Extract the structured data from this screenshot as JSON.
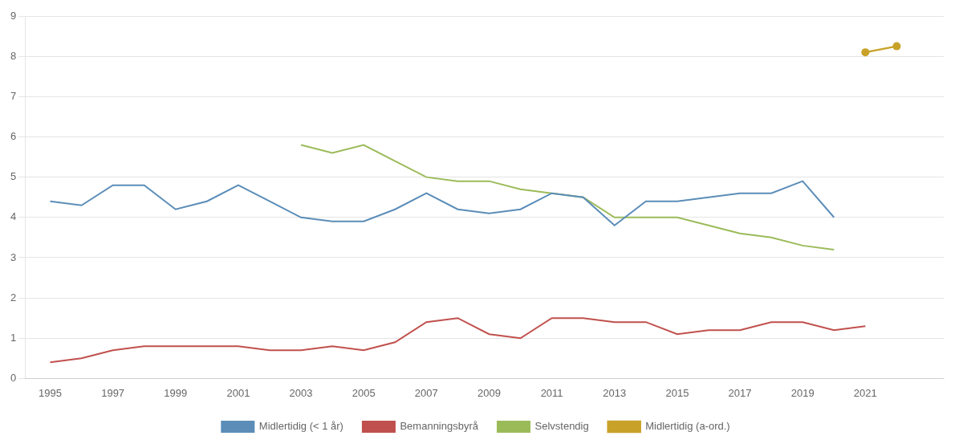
{
  "chart_data": {
    "type": "line",
    "x": [
      1995,
      1996,
      1997,
      1998,
      1999,
      2000,
      2001,
      2002,
      2003,
      2004,
      2005,
      2006,
      2007,
      2008,
      2009,
      2010,
      2011,
      2012,
      2013,
      2014,
      2015,
      2016,
      2017,
      2018,
      2019,
      2020,
      2021,
      2022
    ],
    "series": [
      {
        "name": "Midlertidig (< 1 år)",
        "color": "#5b8db8",
        "marker": "none",
        "line_style": "solid",
        "values": [
          4.4,
          4.3,
          4.8,
          4.8,
          4.2,
          4.4,
          4.8,
          4.4,
          4.0,
          3.9,
          3.9,
          4.2,
          4.6,
          4.2,
          4.1,
          4.2,
          4.6,
          4.5,
          3.8,
          4.4,
          4.4,
          4.5,
          4.6,
          4.6,
          4.9,
          4.0,
          null,
          null
        ]
      },
      {
        "name": "Bemanningsbyrå",
        "color": "#c0504d",
        "marker": "none",
        "line_style": "solid",
        "values": [
          0.4,
          0.5,
          0.7,
          0.8,
          0.8,
          0.8,
          0.8,
          0.7,
          0.7,
          0.8,
          0.7,
          0.9,
          1.4,
          1.5,
          1.1,
          1.0,
          1.5,
          1.5,
          1.4,
          1.4,
          1.1,
          1.2,
          1.2,
          1.4,
          1.4,
          1.2,
          1.3,
          null
        ]
      },
      {
        "name": "Selvstendig",
        "color": "#9bbb59",
        "marker": "none",
        "line_style": "solid",
        "values": [
          null,
          null,
          null,
          null,
          null,
          null,
          null,
          null,
          5.8,
          5.6,
          5.8,
          5.4,
          5.0,
          4.9,
          4.9,
          4.7,
          4.6,
          4.5,
          4.0,
          4.0,
          4.0,
          3.8,
          3.6,
          3.5,
          3.3,
          3.2,
          null,
          null
        ]
      },
      {
        "name": "Midlertidig (a-ord.)",
        "color": "#c8a228",
        "marker": "circle",
        "line_style": "solid",
        "values": [
          null,
          null,
          null,
          null,
          null,
          null,
          null,
          null,
          null,
          null,
          null,
          null,
          null,
          null,
          null,
          null,
          null,
          null,
          null,
          null,
          null,
          null,
          null,
          null,
          null,
          null,
          8.1,
          8.25
        ]
      }
    ],
    "xlim": [
      1994.2,
      2023.5
    ],
    "xticks": [
      1995,
      1997,
      1999,
      2001,
      2003,
      2005,
      2007,
      2009,
      2011,
      2013,
      2015,
      2017,
      2019,
      2021
    ],
    "ylim": [
      0,
      9
    ],
    "yticks": [
      0,
      1,
      2,
      3,
      4,
      5,
      6,
      7,
      8,
      9
    ],
    "grid": true,
    "legend": "bottom"
  }
}
